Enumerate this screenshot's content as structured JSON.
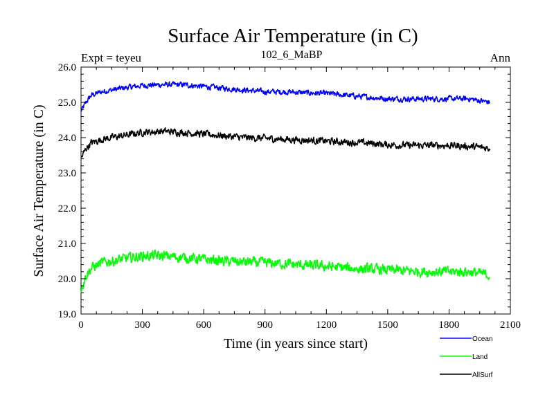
{
  "chart_data": {
    "type": "line",
    "title": "Surface Air Temperature (in C)",
    "subtitle": "102_6_MaBP",
    "left_label": "Expt = teyeu",
    "right_label": "Ann",
    "xlabel": "Time (in years since start)",
    "ylabel": "Surface Air Temperature (in C)",
    "xlim": [
      0,
      2100
    ],
    "ylim": [
      19.0,
      26.0
    ],
    "x_ticks": [
      0,
      300,
      600,
      900,
      1200,
      1500,
      1800,
      2100
    ],
    "x_tick_labels": [
      "0",
      "300",
      "600",
      "900",
      "1200",
      "1500",
      "1800",
      "2100"
    ],
    "y_ticks": [
      19,
      20,
      21,
      22,
      23,
      24,
      25,
      26
    ],
    "y_tick_labels": [
      "19.0",
      "20.0",
      "21.0",
      "22.0",
      "23.0",
      "24.0",
      "25.0",
      "26.0"
    ],
    "series": [
      {
        "name": "Ocean",
        "color": "#0000ff",
        "x": [
          0,
          25,
          50,
          100,
          200,
          300,
          400,
          500,
          600,
          700,
          800,
          900,
          1000,
          1100,
          1200,
          1300,
          1400,
          1500,
          1600,
          1700,
          1800,
          1900,
          2000
        ],
        "values": [
          24.75,
          25.0,
          25.2,
          25.3,
          25.4,
          25.48,
          25.5,
          25.5,
          25.45,
          25.4,
          25.35,
          25.3,
          25.3,
          25.27,
          25.25,
          25.2,
          25.15,
          25.1,
          25.1,
          25.1,
          25.1,
          25.1,
          25.0
        ],
        "noise": 0.12
      },
      {
        "name": "AllSurf",
        "color": "#000000",
        "x": [
          0,
          25,
          50,
          100,
          200,
          300,
          400,
          500,
          600,
          700,
          800,
          900,
          1000,
          1100,
          1200,
          1300,
          1400,
          1500,
          1600,
          1700,
          1800,
          1900,
          2000
        ],
        "values": [
          23.4,
          23.7,
          23.85,
          23.95,
          24.05,
          24.15,
          24.18,
          24.15,
          24.1,
          24.05,
          24.0,
          23.98,
          23.95,
          23.93,
          23.9,
          23.87,
          23.85,
          23.8,
          23.78,
          23.78,
          23.78,
          23.75,
          23.7
        ],
        "noise": 0.15
      },
      {
        "name": "Land",
        "color": "#00ff00",
        "x": [
          0,
          25,
          50,
          100,
          200,
          300,
          400,
          500,
          600,
          700,
          800,
          900,
          1000,
          1100,
          1200,
          1300,
          1400,
          1500,
          1600,
          1700,
          1800,
          1900,
          2000
        ],
        "values": [
          19.7,
          20.1,
          20.3,
          20.45,
          20.55,
          20.65,
          20.65,
          20.6,
          20.55,
          20.5,
          20.47,
          20.45,
          20.42,
          20.38,
          20.35,
          20.3,
          20.27,
          20.25,
          20.22,
          20.2,
          20.2,
          20.2,
          20.1
        ],
        "noise": 0.22
      }
    ],
    "legend": [
      {
        "name": "Ocean",
        "color": "#0000ff"
      },
      {
        "name": "Land",
        "color": "#00ff00"
      },
      {
        "name": "AllSurf",
        "color": "#000000"
      }
    ],
    "legend_position": "bottom-right",
    "grid": false
  }
}
